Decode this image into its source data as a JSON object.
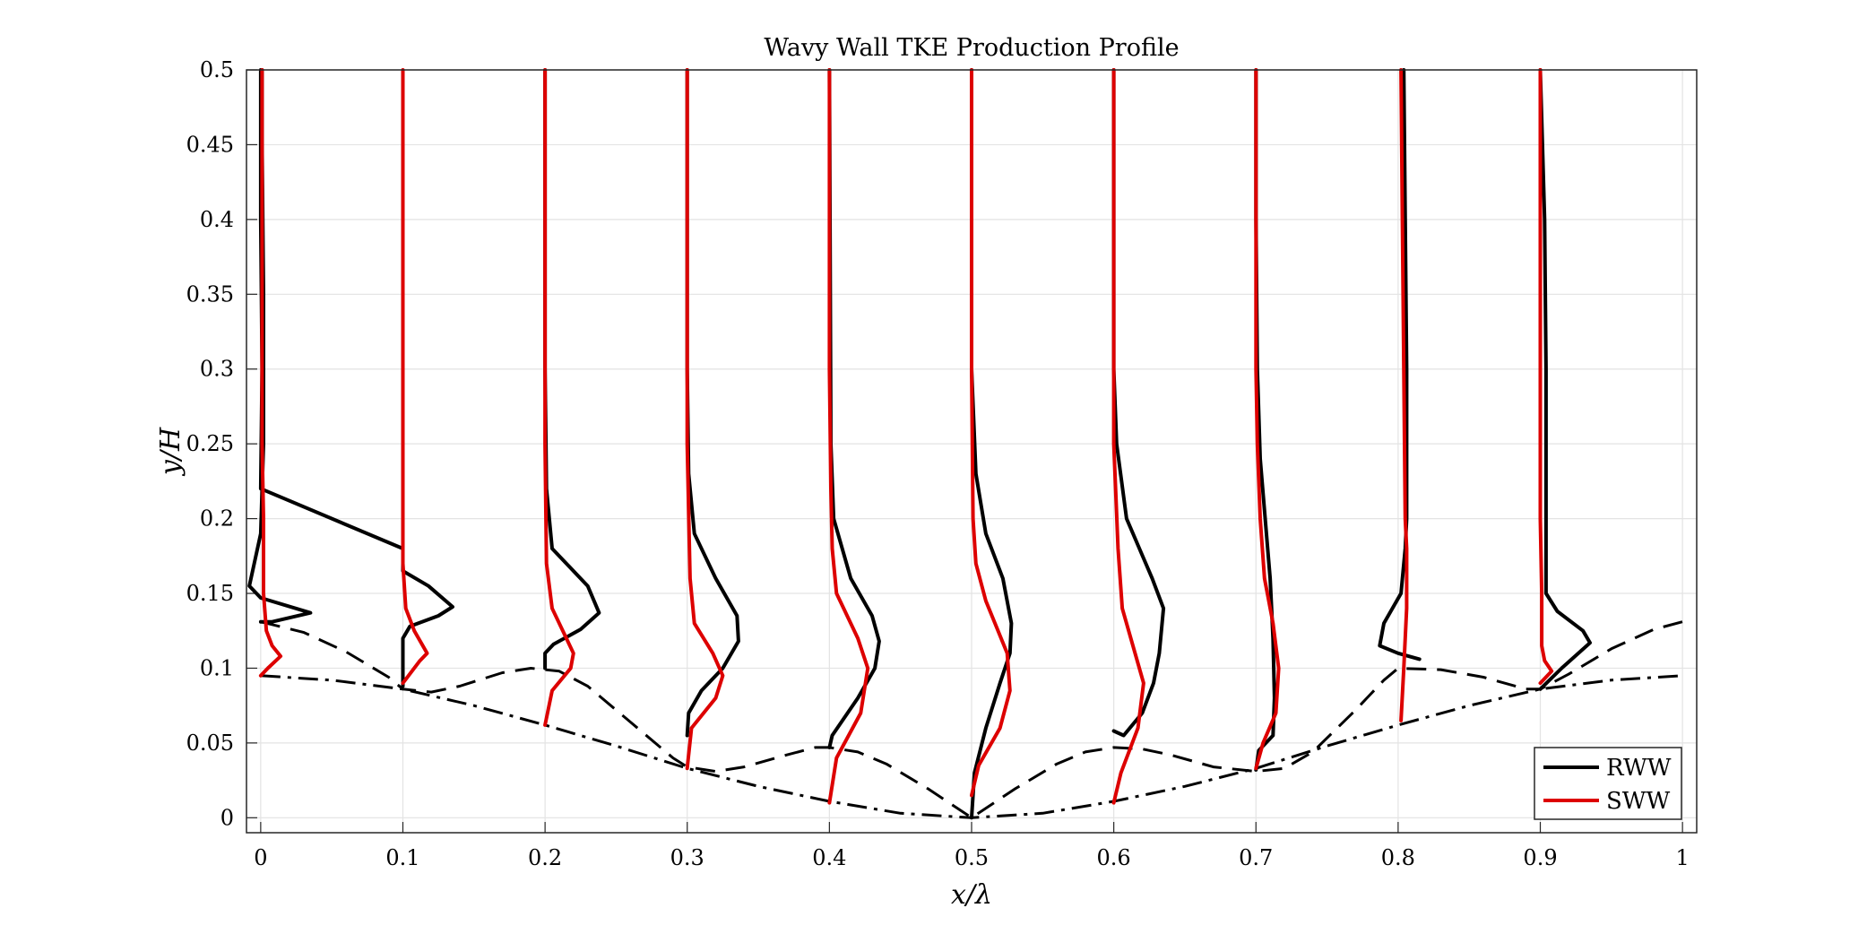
{
  "chart_data": {
    "type": "line",
    "title": "Wavy Wall TKE Production Profile",
    "xlabel": "x/λ",
    "ylabel": "y/H",
    "xlim": [
      -0.01,
      1.01
    ],
    "ylim": [
      -0.01,
      0.5
    ],
    "xticks": [
      0,
      0.1,
      0.2,
      0.3,
      0.4,
      0.5,
      0.6,
      0.7,
      0.8,
      0.9,
      1
    ],
    "xtick_labels": [
      "0",
      "0.1",
      "0.2",
      "0.3",
      "0.4",
      "0.5",
      "0.6",
      "0.7",
      "0.8",
      "0.9",
      "1"
    ],
    "yticks": [
      0,
      0.05,
      0.1,
      0.15,
      0.2,
      0.25,
      0.3,
      0.35,
      0.4,
      0.45,
      0.5
    ],
    "ytick_labels": [
      "0",
      "0.05",
      "0.1",
      "0.15",
      "0.2",
      "0.25",
      "0.3",
      "0.35",
      "0.4",
      "0.45",
      "0.5"
    ],
    "grid": true,
    "legend_position": "bottom-right",
    "walls": [
      {
        "style": "dashdot",
        "color": "#000000",
        "x": [
          0,
          0.05,
          0.1,
          0.15,
          0.2,
          0.25,
          0.3,
          0.35,
          0.4,
          0.45,
          0.5,
          0.55,
          0.6,
          0.65,
          0.7,
          0.75,
          0.8,
          0.85,
          0.9,
          0.95,
          1.0
        ],
        "y": [
          0.095,
          0.092,
          0.086,
          0.075,
          0.062,
          0.048,
          0.033,
          0.021,
          0.011,
          0.003,
          0.0,
          0.003,
          0.011,
          0.021,
          0.033,
          0.048,
          0.062,
          0.075,
          0.086,
          0.092,
          0.095
        ]
      },
      {
        "style": "dashed",
        "color": "#000000",
        "x": [
          0,
          0.03,
          0.06,
          0.09,
          0.1,
          0.12,
          0.14,
          0.17,
          0.19,
          0.21,
          0.23,
          0.26,
          0.29,
          0.3,
          0.32,
          0.34,
          0.37,
          0.39,
          0.4,
          0.42,
          0.44,
          0.47,
          0.5,
          0.53,
          0.56,
          0.58,
          0.6,
          0.62,
          0.64,
          0.67,
          0.7,
          0.72,
          0.74,
          0.77,
          0.79,
          0.8,
          0.83,
          0.86,
          0.89,
          0.9,
          0.92,
          0.95,
          0.98,
          1.0
        ],
        "y": [
          0.131,
          0.124,
          0.111,
          0.094,
          0.086,
          0.084,
          0.088,
          0.097,
          0.1,
          0.098,
          0.088,
          0.064,
          0.04,
          0.034,
          0.031,
          0.034,
          0.042,
          0.047,
          0.047,
          0.044,
          0.036,
          0.019,
          0.0,
          0.019,
          0.036,
          0.044,
          0.047,
          0.046,
          0.042,
          0.034,
          0.031,
          0.033,
          0.044,
          0.072,
          0.092,
          0.1,
          0.099,
          0.094,
          0.086,
          0.086,
          0.096,
          0.113,
          0.126,
          0.131
        ]
      }
    ],
    "series": [
      {
        "name": "RWW",
        "color": "#000000",
        "profiles": [
          {
            "station": 0.0,
            "x": [
              0.0,
              0.008,
              0.035,
              0.0,
              -0.008,
              0.0,
              0.002,
              0.002,
              0.001,
              0.001
            ],
            "y": [
              0.131,
              0.131,
              0.137,
              0.147,
              0.155,
              0.19,
              0.25,
              0.35,
              0.45,
              0.5
            ]
          },
          {
            "station": 0.1,
            "x": [
              0.1,
              0.1,
              0.105,
              0.125,
              0.135,
              0.118,
              0.1,
              0.1,
              0.0,
              0.001,
              0.0,
              0.0
            ],
            "y": [
              0.088,
              0.12,
              0.128,
              0.135,
              0.141,
              0.155,
              0.165,
              0.18,
              0.22,
              0.3,
              0.4,
              0.5
            ]
          },
          {
            "station": 0.2,
            "x": [
              0.2,
              0.2,
              0.206,
              0.225,
              0.238,
              0.23,
              0.205,
              0.201,
              0.2,
              0.2
            ],
            "y": [
              0.1,
              0.11,
              0.116,
              0.126,
              0.137,
              0.155,
              0.18,
              0.22,
              0.3,
              0.5
            ]
          },
          {
            "station": 0.3,
            "x": [
              0.3,
              0.301,
              0.31,
              0.325,
              0.336,
              0.335,
              0.32,
              0.305,
              0.301,
              0.3,
              0.3
            ],
            "y": [
              0.055,
              0.07,
              0.085,
              0.1,
              0.118,
              0.135,
              0.16,
              0.19,
              0.23,
              0.3,
              0.5
            ]
          },
          {
            "station": 0.4,
            "x": [
              0.4,
              0.402,
              0.42,
              0.432,
              0.435,
              0.43,
              0.415,
              0.403,
              0.401,
              0.4
            ],
            "y": [
              0.047,
              0.055,
              0.08,
              0.1,
              0.118,
              0.135,
              0.16,
              0.2,
              0.25,
              0.5
            ]
          },
          {
            "station": 0.5,
            "x": [
              0.5,
              0.502,
              0.51,
              0.52,
              0.527,
              0.528,
              0.522,
              0.51,
              0.503,
              0.5,
              0.5
            ],
            "y": [
              0.0,
              0.03,
              0.06,
              0.09,
              0.11,
              0.13,
              0.16,
              0.19,
              0.23,
              0.3,
              0.5
            ]
          },
          {
            "station": 0.6,
            "x": [
              0.6,
              0.607,
              0.62,
              0.628,
              0.632,
              0.635,
              0.627,
              0.609,
              0.602,
              0.6,
              0.6
            ],
            "y": [
              0.058,
              0.055,
              0.07,
              0.09,
              0.11,
              0.14,
              0.16,
              0.2,
              0.25,
              0.3,
              0.5
            ]
          },
          {
            "station": 0.7,
            "x": [
              0.7,
              0.702,
              0.712,
              0.713,
              0.712,
              0.71,
              0.703,
              0.701,
              0.7,
              0.7
            ],
            "y": [
              0.032,
              0.045,
              0.055,
              0.08,
              0.12,
              0.16,
              0.24,
              0.3,
              0.4,
              0.5
            ]
          },
          {
            "station": 0.8,
            "x": [
              0.815,
              0.8,
              0.787,
              0.79,
              0.802,
              0.805,
              0.806,
              0.806,
              0.805,
              0.804
            ],
            "y": [
              0.106,
              0.11,
              0.115,
              0.13,
              0.15,
              0.18,
              0.2,
              0.3,
              0.4,
              0.5
            ]
          },
          {
            "station": 0.9,
            "x": [
              0.9,
              0.915,
              0.935,
              0.93,
              0.912,
              0.904,
              0.904,
              0.904,
              0.903,
              0.9
            ],
            "y": [
              0.086,
              0.1,
              0.117,
              0.125,
              0.138,
              0.15,
              0.2,
              0.3,
              0.4,
              0.5
            ]
          }
        ]
      },
      {
        "name": "SWW",
        "color": "#dd0000",
        "profiles": [
          {
            "station": 0.0,
            "x": [
              0.0,
              0.005,
              0.014,
              0.008,
              0.004,
              0.002,
              0.002,
              0.001,
              0.001,
              0.001,
              0.001
            ],
            "y": [
              0.095,
              0.1,
              0.108,
              0.115,
              0.125,
              0.15,
              0.2,
              0.25,
              0.3,
              0.4,
              0.5
            ]
          },
          {
            "station": 0.1,
            "x": [
              0.1,
              0.112,
              0.117,
              0.108,
              0.102,
              0.1,
              0.1,
              0.1
            ],
            "y": [
              0.09,
              0.105,
              0.11,
              0.125,
              0.14,
              0.17,
              0.3,
              0.5
            ]
          },
          {
            "station": 0.2,
            "x": [
              0.2,
              0.205,
              0.218,
              0.22,
              0.215,
              0.205,
              0.201,
              0.2,
              0.2
            ],
            "y": [
              0.062,
              0.085,
              0.1,
              0.11,
              0.12,
              0.14,
              0.17,
              0.25,
              0.5
            ]
          },
          {
            "station": 0.3,
            "x": [
              0.3,
              0.303,
              0.32,
              0.325,
              0.318,
              0.305,
              0.302,
              0.3,
              0.3
            ],
            "y": [
              0.033,
              0.06,
              0.08,
              0.095,
              0.11,
              0.13,
              0.16,
              0.25,
              0.5
            ]
          },
          {
            "station": 0.4,
            "x": [
              0.4,
              0.405,
              0.422,
              0.427,
              0.42,
              0.405,
              0.402,
              0.401,
              0.4,
              0.4
            ],
            "y": [
              0.01,
              0.04,
              0.07,
              0.1,
              0.12,
              0.15,
              0.18,
              0.22,
              0.3,
              0.5
            ]
          },
          {
            "station": 0.5,
            "x": [
              0.5,
              0.505,
              0.52,
              0.527,
              0.525,
              0.51,
              0.503,
              0.501,
              0.5,
              0.5
            ],
            "y": [
              0.015,
              0.035,
              0.06,
              0.085,
              0.11,
              0.145,
              0.17,
              0.2,
              0.3,
              0.5
            ]
          },
          {
            "station": 0.6,
            "x": [
              0.6,
              0.605,
              0.617,
              0.621,
              0.615,
              0.606,
              0.603,
              0.6,
              0.6
            ],
            "y": [
              0.01,
              0.03,
              0.06,
              0.09,
              0.11,
              0.14,
              0.18,
              0.25,
              0.5
            ]
          },
          {
            "station": 0.7,
            "x": [
              0.7,
              0.705,
              0.714,
              0.716,
              0.712,
              0.706,
              0.703,
              0.701,
              0.7,
              0.7
            ],
            "y": [
              0.033,
              0.05,
              0.07,
              0.1,
              0.13,
              0.16,
              0.2,
              0.25,
              0.3,
              0.5
            ]
          },
          {
            "station": 0.8,
            "x": [
              0.802,
              0.804,
              0.806,
              0.806,
              0.805,
              0.804,
              0.803,
              0.802
            ],
            "y": [
              0.065,
              0.1,
              0.14,
              0.18,
              0.2,
              0.3,
              0.4,
              0.5
            ]
          },
          {
            "station": 0.9,
            "x": [
              0.9,
              0.908,
              0.903,
              0.901,
              0.901,
              0.9,
              0.9,
              0.9
            ],
            "y": [
              0.09,
              0.098,
              0.105,
              0.115,
              0.15,
              0.2,
              0.3,
              0.5
            ]
          }
        ]
      }
    ]
  }
}
